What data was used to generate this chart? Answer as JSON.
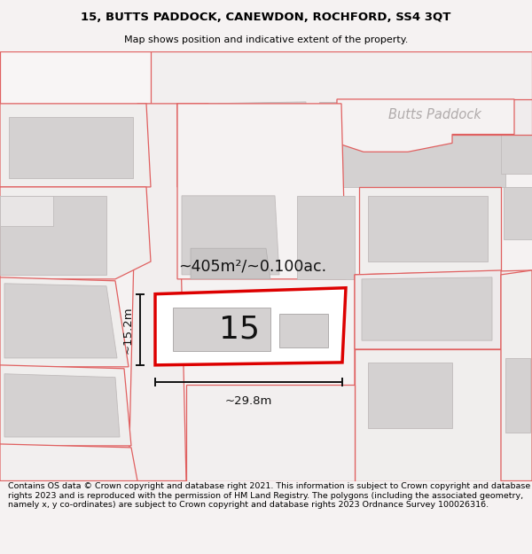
{
  "title_line1": "15, BUTTS PADDOCK, CANEWDON, ROCHFORD, SS4 3QT",
  "title_line2": "Map shows position and indicative extent of the property.",
  "footer_text": "Contains OS data © Crown copyright and database right 2021. This information is subject to Crown copyright and database rights 2023 and is reproduced with the permission of HM Land Registry. The polygons (including the associated geometry, namely x, y co-ordinates) are subject to Crown copyright and database rights 2023 Ordnance Survey 100026316.",
  "street_label": "Butts Paddock",
  "area_label": "~405m²/~0.100ac.",
  "width_label": "~29.8m",
  "height_label": "~15.2m",
  "plot_number": "15",
  "bg_color": "#f5f2f2",
  "road_stroke": "#e06060",
  "dim_color": "#111111",
  "gray_fill": "#d4d1d1",
  "highlight_ec": "#dd0000",
  "highlight_fc": "#ffffff"
}
